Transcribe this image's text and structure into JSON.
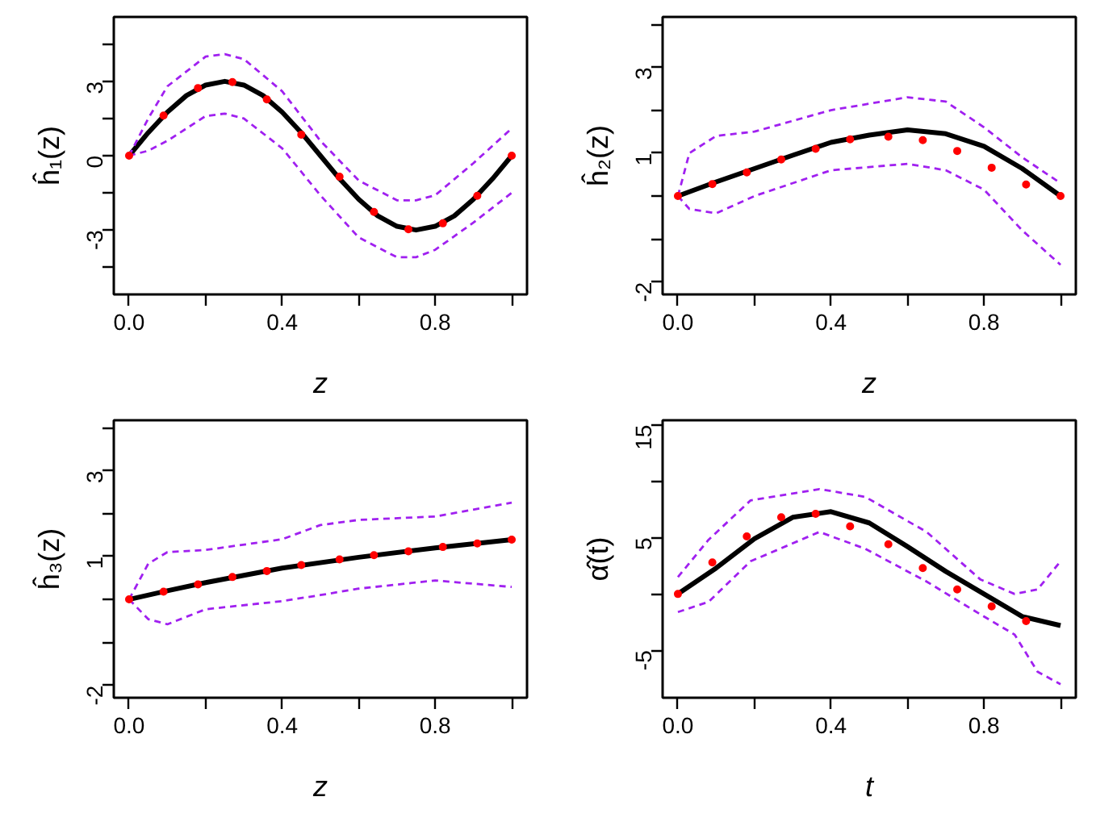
{
  "chart_data": [
    {
      "type": "line",
      "xlabel": "z",
      "ylabel": "ĥ₁(z)",
      "xlim": [
        -0.04,
        1.04
      ],
      "ylim": [
        -5.6,
        5.6
      ],
      "xticks": [
        {
          "value": 0,
          "label": "0.0"
        },
        {
          "value": 0.2,
          "label": null
        },
        {
          "value": 0.4,
          "label": "0.4"
        },
        {
          "value": 0.6,
          "label": null
        },
        {
          "value": 0.8,
          "label": "0.8"
        },
        {
          "value": 1.0,
          "label": null
        }
      ],
      "yticks": [
        {
          "value": -4.5,
          "label": null
        },
        -3,
        {
          "value": -1.5,
          "label": null
        },
        0,
        {
          "value": 1.5,
          "label": null
        },
        3,
        {
          "value": 4.5,
          "label": null
        }
      ],
      "series": [
        {
          "color": "#000000",
          "x": [
            0,
            0.05,
            0.1,
            0.15,
            0.2,
            0.25,
            0.3,
            0.35,
            0.4,
            0.45,
            0.5,
            0.55,
            0.6,
            0.65,
            0.7,
            0.75,
            0.8,
            0.85,
            0.9,
            0.95,
            1.0
          ],
          "values": [
            0,
            0.93,
            1.76,
            2.43,
            2.85,
            3,
            2.85,
            2.43,
            1.76,
            0.93,
            0,
            -0.93,
            -1.76,
            -2.43,
            -2.85,
            -3,
            -2.85,
            -2.43,
            -1.76,
            -0.93,
            0
          ]
        },
        {
          "type": "line",
          "line_style": "dashed",
          "color": "#a020f0",
          "x": [
            0,
            0.05,
            0.1,
            0.2,
            0.25,
            0.3,
            0.4,
            0.5,
            0.6,
            0.7,
            0.75,
            0.8,
            0.9,
            1.0
          ],
          "values": [
            0,
            1.5,
            2.8,
            4.0,
            4.1,
            3.9,
            2.6,
            0.6,
            -1.0,
            -1.8,
            -1.8,
            -1.6,
            -0.3,
            1.1
          ]
        },
        {
          "type": "line",
          "line_style": "dashed",
          "color": "#a020f0",
          "x": [
            0,
            0.05,
            0.1,
            0.2,
            0.25,
            0.3,
            0.4,
            0.5,
            0.6,
            0.7,
            0.75,
            0.8,
            0.9,
            1.0
          ],
          "values": [
            0,
            0.2,
            0.6,
            1.6,
            1.7,
            1.5,
            0.3,
            -1.6,
            -3.3,
            -4.1,
            -4.1,
            -3.8,
            -2.7,
            -1.5
          ]
        },
        {
          "type": "scatter",
          "marker": "circle",
          "color": "#ff0000",
          "x": [
            0,
            0.09,
            0.18,
            0.27,
            0.36,
            0.45,
            0.55,
            0.64,
            0.73,
            0.82,
            0.91,
            1.0
          ],
          "values": [
            0,
            1.62,
            2.73,
            2.97,
            2.27,
            0.85,
            -0.85,
            -2.27,
            -2.97,
            -2.73,
            -1.62,
            0
          ]
        }
      ]
    },
    {
      "type": "line",
      "xlabel": "z",
      "ylabel": "ĥ₂(z)",
      "xlim": [
        -0.04,
        1.04
      ],
      "ylim": [
        -2.29,
        4.17
      ],
      "xticks": [
        {
          "value": 0,
          "label": "0.0"
        },
        {
          "value": 0.2,
          "label": null
        },
        {
          "value": 0.4,
          "label": "0.4"
        },
        {
          "value": 0.6,
          "label": null
        },
        {
          "value": 0.8,
          "label": "0.8"
        },
        {
          "value": 1.0,
          "label": null
        }
      ],
      "yticks": [
        -2,
        {
          "value": -1,
          "label": null
        },
        {
          "value": 0,
          "label": null
        },
        1,
        {
          "value": 2,
          "label": null
        },
        3,
        {
          "value": 4,
          "label": null
        }
      ],
      "series": [
        {
          "color": "#000000",
          "x": [
            0,
            0.1,
            0.2,
            0.3,
            0.4,
            0.5,
            0.6,
            0.7,
            0.8,
            0.9,
            1.0
          ],
          "values": [
            0,
            0.33,
            0.64,
            0.95,
            1.25,
            1.42,
            1.54,
            1.45,
            1.16,
            0.64,
            0.0
          ]
        },
        {
          "type": "line",
          "line_style": "dashed",
          "color": "#a020f0",
          "x": [
            0,
            0.03,
            0.1,
            0.2,
            0.4,
            0.6,
            0.7,
            0.8,
            0.9,
            1.0
          ],
          "values": [
            0,
            1.0,
            1.4,
            1.5,
            2.0,
            2.3,
            2.2,
            1.6,
            0.9,
            0.3
          ]
        },
        {
          "type": "line",
          "line_style": "dashed",
          "color": "#a020f0",
          "x": [
            0,
            0.03,
            0.1,
            0.2,
            0.4,
            0.6,
            0.7,
            0.8,
            0.9,
            1.0
          ],
          "values": [
            0,
            -0.3,
            -0.4,
            0.0,
            0.6,
            0.75,
            0.6,
            0.15,
            -0.8,
            -1.6
          ]
        },
        {
          "type": "scatter",
          "marker": "circle",
          "color": "#ff0000",
          "x": [
            0,
            0.09,
            0.18,
            0.27,
            0.36,
            0.45,
            0.55,
            0.64,
            0.73,
            0.82,
            0.91,
            1.0
          ],
          "values": [
            0,
            0.28,
            0.55,
            0.85,
            1.1,
            1.32,
            1.38,
            1.3,
            1.05,
            0.66,
            0.27,
            0
          ]
        }
      ]
    },
    {
      "type": "line",
      "xlabel": "z",
      "ylabel": "ĥ₃(z)",
      "xlim": [
        -0.04,
        1.04
      ],
      "ylim": [
        -2.29,
        4.17
      ],
      "xticks": [
        {
          "value": 0,
          "label": "0.0"
        },
        {
          "value": 0.2,
          "label": null
        },
        {
          "value": 0.4,
          "label": "0.4"
        },
        {
          "value": 0.6,
          "label": null
        },
        {
          "value": 0.8,
          "label": "0.8"
        },
        {
          "value": 1.0,
          "label": null
        }
      ],
      "yticks": [
        -2,
        {
          "value": -1,
          "label": null
        },
        {
          "value": 0,
          "label": null
        },
        1,
        {
          "value": 2,
          "label": null
        },
        3,
        {
          "value": 4,
          "label": null
        }
      ],
      "series": [
        {
          "color": "#000000",
          "x": [
            0,
            0.1,
            0.2,
            0.4,
            0.6,
            0.8,
            1.0
          ],
          "values": [
            0,
            0.2,
            0.39,
            0.73,
            0.98,
            1.2,
            1.39
          ]
        },
        {
          "type": "line",
          "line_style": "dashed",
          "color": "#a020f0",
          "x": [
            0,
            0.05,
            0.1,
            0.2,
            0.4,
            0.5,
            0.6,
            0.8,
            1.0
          ],
          "values": [
            0,
            0.83,
            1.1,
            1.15,
            1.4,
            1.73,
            1.85,
            1.93,
            2.25
          ]
        },
        {
          "type": "line",
          "line_style": "dashed",
          "color": "#a020f0",
          "x": [
            0,
            0.05,
            0.1,
            0.2,
            0.4,
            0.5,
            0.6,
            0.8,
            1.0
          ],
          "values": [
            0,
            -0.46,
            -0.58,
            -0.23,
            -0.04,
            0.1,
            0.25,
            0.44,
            0.29
          ]
        },
        {
          "type": "scatter",
          "marker": "circle",
          "color": "#ff0000",
          "x": [
            0,
            0.09,
            0.18,
            0.27,
            0.36,
            0.45,
            0.55,
            0.64,
            0.73,
            0.82,
            0.91,
            1.0
          ],
          "values": [
            0,
            0.18,
            0.35,
            0.52,
            0.66,
            0.8,
            0.93,
            1.03,
            1.12,
            1.22,
            1.3,
            1.39
          ]
        }
      ]
    },
    {
      "type": "line",
      "xlabel": "t",
      "ylabel": "α̂(t)",
      "xlim": [
        -0.04,
        1.04
      ],
      "ylim": [
        -9.2,
        15.4
      ],
      "xticks": [
        {
          "value": 0,
          "label": "0.0"
        },
        {
          "value": 0.2,
          "label": null
        },
        {
          "value": 0.4,
          "label": "0.4"
        },
        {
          "value": 0.6,
          "label": null
        },
        {
          "value": 0.8,
          "label": "0.8"
        },
        {
          "value": 1.0,
          "label": null
        }
      ],
      "yticks": [
        -5,
        {
          "value": 0,
          "label": null
        },
        5,
        {
          "value": 10,
          "label": null
        },
        15
      ],
      "series": [
        {
          "color": "#000000",
          "x": [
            0,
            0.1,
            0.2,
            0.3,
            0.4,
            0.5,
            0.6,
            0.7,
            0.8,
            0.9,
            1.0
          ],
          "values": [
            0,
            2.3,
            4.9,
            6.8,
            7.3,
            6.3,
            4.2,
            2.0,
            0.0,
            -2.0,
            -2.8
          ]
        },
        {
          "type": "line",
          "line_style": "dashed",
          "color": "#a020f0",
          "x": [
            0,
            0.08,
            0.19,
            0.37,
            0.49,
            0.65,
            0.79,
            0.88,
            0.94,
            1.0
          ],
          "values": [
            1.5,
            4.8,
            8.3,
            9.3,
            8.6,
            5.5,
            1.3,
            0,
            0.4,
            2.9
          ]
        },
        {
          "type": "line",
          "line_style": "dashed",
          "color": "#a020f0",
          "x": [
            0,
            0.08,
            0.19,
            0.37,
            0.49,
            0.65,
            0.79,
            0.88,
            0.94,
            1.0
          ],
          "values": [
            -1.6,
            -0.7,
            2.9,
            5.5,
            4.0,
            1.1,
            -1.8,
            -3.6,
            -6.9,
            -8.0
          ]
        },
        {
          "type": "scatter",
          "marker": "circle",
          "color": "#ff0000",
          "x": [
            0,
            0.09,
            0.18,
            0.27,
            0.36,
            0.45,
            0.55,
            0.64,
            0.73,
            0.82,
            0.91
          ],
          "values": [
            0,
            2.8,
            5.1,
            6.8,
            7.1,
            6.0,
            4.4,
            2.3,
            0.4,
            -1.1,
            -2.4
          ]
        }
      ]
    }
  ]
}
